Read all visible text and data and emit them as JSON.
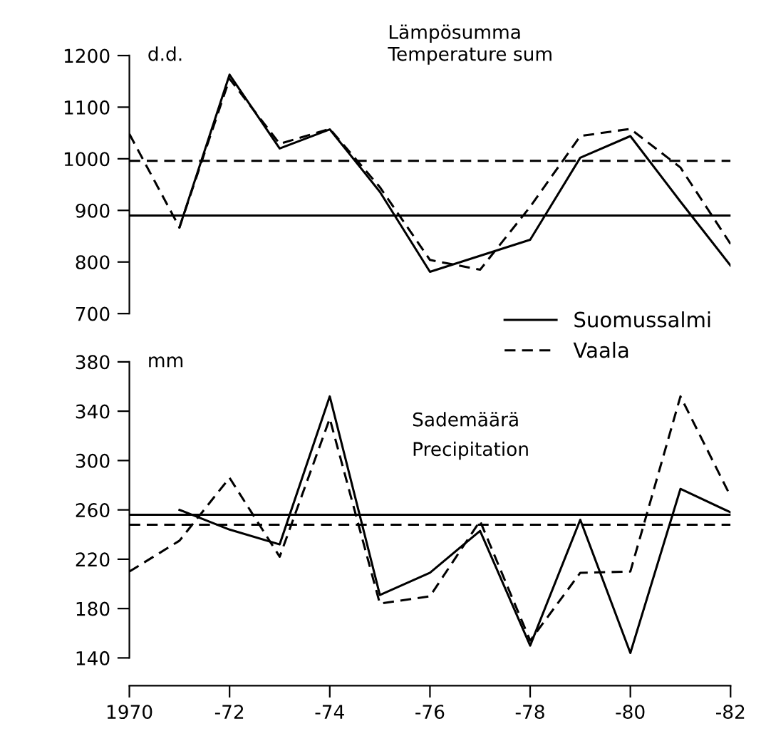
{
  "chart_data": [
    {
      "type": "line",
      "title": "Lämpösumma",
      "subtitle": "Temperature sum",
      "ylabel": "d.d.",
      "categories": [
        "1970",
        null,
        "-72",
        null,
        "-74",
        null,
        "-76",
        null,
        "-78",
        null,
        "-80",
        null,
        "-82"
      ],
      "ylim": [
        700,
        1200
      ],
      "yticks": [
        700,
        800,
        900,
        1000,
        1100,
        1200
      ],
      "tick_labels": "y",
      "grid": false,
      "legend": "bottom right",
      "marker": "none",
      "series": [
        {
          "name": "Suomussalmi",
          "color": "#000000",
          "line_style": "solid",
          "values": [
            null,
            867,
            1163,
            1020,
            1057,
            936,
            781,
            812,
            843,
            1002,
            1044,
            917,
            793
          ]
        },
        {
          "name": "Vaala",
          "color": "#000000",
          "line_style": "dashed",
          "values": [
            1048,
            867,
            1155,
            1029,
            1058,
            945,
            804,
            785,
            907,
            1044,
            1058,
            983,
            835
          ]
        }
      ],
      "ref_lines": [
        {
          "axis": "y",
          "value": 890,
          "label": null,
          "color": "#000000",
          "line_style": "solid"
        },
        {
          "axis": "y",
          "value": 996,
          "label": null,
          "color": "#000000",
          "line_style": "dashed"
        }
      ]
    },
    {
      "type": "line",
      "title": "Sademäärä",
      "subtitle": "Precipitation",
      "ylabel": "mm",
      "categories": [
        "1970",
        null,
        "-72",
        null,
        "-74",
        null,
        "-76",
        null,
        "-78",
        null,
        "-80",
        null,
        "-82"
      ],
      "ylim": [
        140,
        380
      ],
      "yticks": [
        140,
        180,
        220,
        260,
        300,
        340,
        380
      ],
      "grid": false,
      "marker": "none",
      "series": [
        {
          "color": "#000000",
          "line_style": "solid",
          "values": [
            null,
            260,
            244,
            232,
            352,
            191,
            209,
            243,
            150,
            252,
            144,
            277,
            258
          ]
        },
        {
          "color": "#000000",
          "line_style": "dashed",
          "values": [
            210,
            235,
            286,
            222,
            334,
            184,
            190,
            251,
            154,
            209,
            210,
            352,
            271
          ]
        }
      ],
      "ref_lines": [
        {
          "axis": "y",
          "value": 256,
          "label": null,
          "color": "#000000",
          "line_style": "solid"
        },
        {
          "axis": "y",
          "value": 248,
          "label": null,
          "color": "#000000",
          "line_style": "dashed"
        }
      ]
    }
  ]
}
